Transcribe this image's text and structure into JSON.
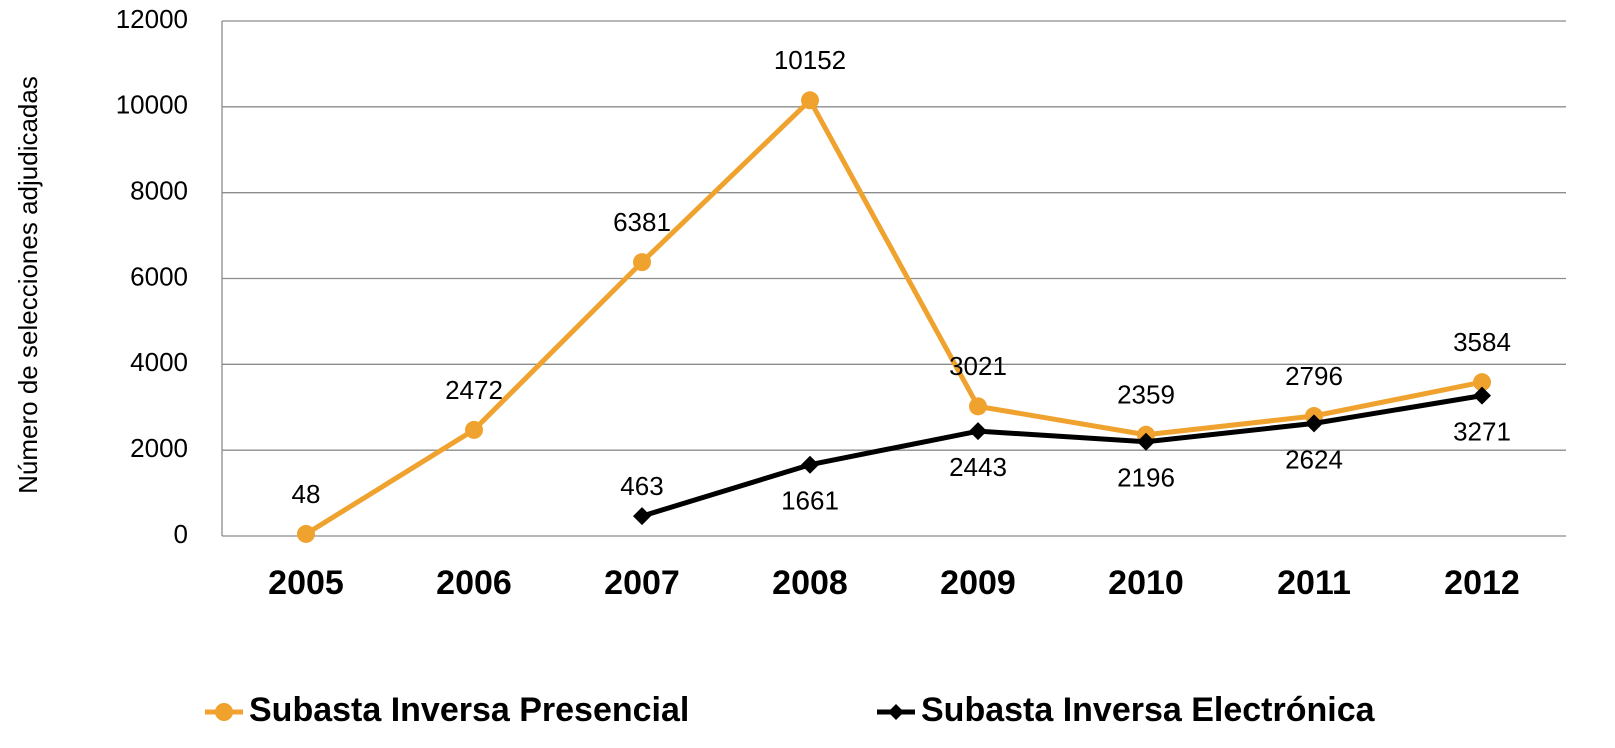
{
  "chart_data": {
    "type": "line",
    "y_label": "Número de selecciones adjudicadas",
    "categories": [
      "2005",
      "2006",
      "2007",
      "2008",
      "2009",
      "2010",
      "2011",
      "2012"
    ],
    "series": [
      {
        "name": "Subasta Inversa Presencial",
        "color": "#f0a22e",
        "marker": "circle",
        "values": [
          48,
          2472,
          6381,
          10152,
          3021,
          2359,
          2796,
          3584
        ]
      },
      {
        "name": "Subasta Inversa Electrónica",
        "color": "#000000",
        "marker": "diamond",
        "values": [
          null,
          null,
          463,
          1661,
          2443,
          2196,
          2624,
          3271
        ]
      }
    ],
    "ylim": [
      0,
      12000
    ],
    "yticks": [
      0,
      2000,
      4000,
      6000,
      8000,
      10000,
      12000
    ],
    "grid": true,
    "legend": "bottom"
  }
}
